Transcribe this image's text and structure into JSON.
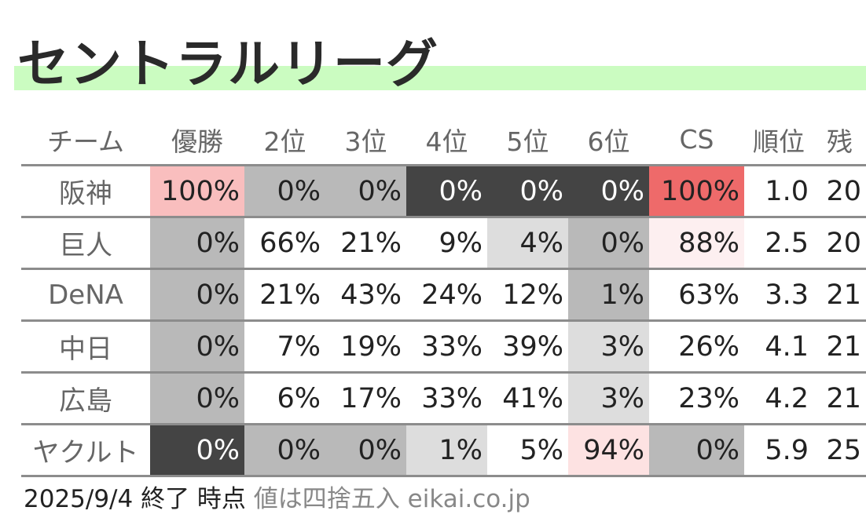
{
  "title": "セントラルリーグ",
  "headers": [
    "チーム",
    "優勝",
    "2位",
    "3位",
    "4位",
    "5位",
    "6位",
    "CS",
    "順位",
    "残"
  ],
  "rows": [
    {
      "team": "阪神",
      "values": [
        "100%",
        "0%",
        "0%",
        "0%",
        "0%",
        "0%",
        "100%",
        "1.0",
        "20"
      ]
    },
    {
      "team": "巨人",
      "values": [
        "0%",
        "66%",
        "21%",
        "9%",
        "4%",
        "0%",
        "88%",
        "2.5",
        "20"
      ]
    },
    {
      "team": "DeNA",
      "values": [
        "0%",
        "21%",
        "43%",
        "24%",
        "12%",
        "1%",
        "63%",
        "3.3",
        "21"
      ]
    },
    {
      "team": "中日",
      "values": [
        "0%",
        "7%",
        "19%",
        "33%",
        "39%",
        "3%",
        "26%",
        "4.1",
        "21"
      ]
    },
    {
      "team": "広島",
      "values": [
        "0%",
        "6%",
        "17%",
        "33%",
        "41%",
        "3%",
        "23%",
        "4.2",
        "21"
      ]
    },
    {
      "team": "ヤクルト",
      "values": [
        "0%",
        "0%",
        "0%",
        "1%",
        "5%",
        "94%",
        "0%",
        "5.9",
        "25"
      ]
    }
  ],
  "cell_colors": [
    [
      "#f9bebe",
      "#b9b9b9",
      "#b9b9b9",
      "#444444",
      "#444444",
      "#444444",
      "#ee6a6a",
      "#ffffff",
      "#ffffff"
    ],
    [
      "#b9b9b9",
      "#ffffff",
      "#ffffff",
      "#ffffff",
      "#dddddd",
      "#b9b9b9",
      "#fdeff0",
      "#ffffff",
      "#ffffff"
    ],
    [
      "#b9b9b9",
      "#ffffff",
      "#ffffff",
      "#ffffff",
      "#ffffff",
      "#b9b9b9",
      "#ffffff",
      "#ffffff",
      "#ffffff"
    ],
    [
      "#b9b9b9",
      "#ffffff",
      "#ffffff",
      "#ffffff",
      "#ffffff",
      "#dddddd",
      "#ffffff",
      "#ffffff",
      "#ffffff"
    ],
    [
      "#b9b9b9",
      "#ffffff",
      "#ffffff",
      "#ffffff",
      "#ffffff",
      "#dddddd",
      "#ffffff",
      "#ffffff",
      "#ffffff"
    ],
    [
      "#444444",
      "#b9b9b9",
      "#b9b9b9",
      "#dddddd",
      "#ffffff",
      "#fde2e2",
      "#b9b9b9",
      "#ffffff",
      "#ffffff"
    ]
  ],
  "footer": {
    "date": "2025/9/4 終了 時点",
    "note": "値は四捨五入 eikai.co.jp"
  },
  "colors": {
    "title_band": "#cbfcc1",
    "dark_cell_text": "#ffffff",
    "rule": "#8c8c8c"
  }
}
